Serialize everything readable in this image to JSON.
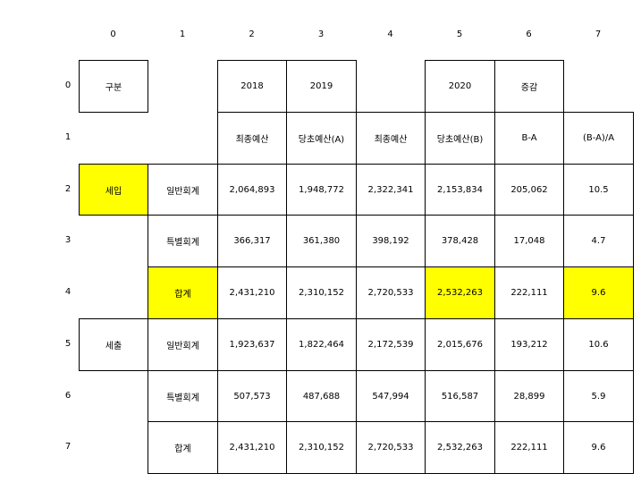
{
  "col_headers": [
    "0",
    "1",
    "2",
    "3",
    "4",
    "5",
    "6",
    "7"
  ],
  "row_headers": [
    "0",
    "1",
    "2",
    "3",
    "4",
    "5",
    "6",
    "7"
  ],
  "cells": [
    [
      "구분",
      "",
      "2018",
      "2019",
      "",
      "2020",
      "증감",
      ""
    ],
    [
      "",
      "",
      "최종예산",
      "당초예산(A)",
      "최종예산",
      "당초예산(B)",
      "B-A",
      "(B-A)/A"
    ],
    [
      "세입",
      "일반회계",
      "2,064,893",
      "1,948,772",
      "2,322,341",
      "2,153,834",
      "205,062",
      "10.5"
    ],
    [
      "",
      "특별회계",
      "366,317",
      "361,380",
      "398,192",
      "378,428",
      "17,048",
      "4.7"
    ],
    [
      "",
      "합계",
      "2,431,210",
      "2,310,152",
      "2,720,533",
      "2,532,263",
      "222,111",
      "9.6"
    ],
    [
      "세출",
      "일반회계",
      "1,923,637",
      "1,822,464",
      "2,172,539",
      "2,015,676",
      "193,212",
      "10.6"
    ],
    [
      "",
      "특별회계",
      "507,573",
      "487,688",
      "547,994",
      "516,587",
      "28,899",
      "5.9"
    ],
    [
      "",
      "합계",
      "2,431,210",
      "2,310,152",
      "2,720,533",
      "2,532,263",
      "222,111",
      "9.6"
    ]
  ],
  "highlight_color": "#ffff00",
  "highlighted_cells": [
    [
      2,
      0
    ],
    [
      4,
      1
    ],
    [
      4,
      5
    ],
    [
      4,
      7
    ]
  ]
}
